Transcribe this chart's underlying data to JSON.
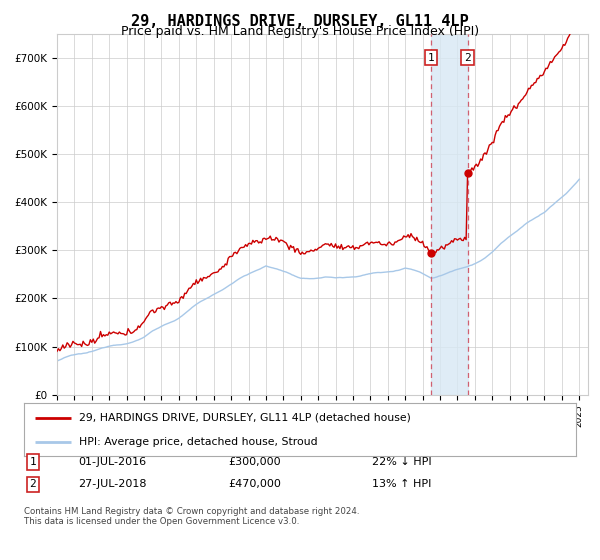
{
  "title": "29, HARDINGS DRIVE, DURSLEY, GL11 4LP",
  "subtitle": "Price paid vs. HM Land Registry's House Price Index (HPI)",
  "legend_line1": "29, HARDINGS DRIVE, DURSLEY, GL11 4LP (detached house)",
  "legend_line2": "HPI: Average price, detached house, Stroud",
  "transaction1_date": "01-JUL-2016",
  "transaction1_price": "£300,000",
  "transaction1_hpi": "22% ↓ HPI",
  "transaction2_date": "27-JUL-2018",
  "transaction2_price": "£470,000",
  "transaction2_hpi": "13% ↑ HPI",
  "footer": "Contains HM Land Registry data © Crown copyright and database right 2024.\nThis data is licensed under the Open Government Licence v3.0.",
  "ylim": [
    0,
    750000
  ],
  "xlim_start": 1995.0,
  "xlim_end": 2025.5,
  "transaction1_x": 2016.5,
  "transaction2_x": 2018.58,
  "hpi_line_color": "#a8c8e8",
  "price_line_color": "#cc0000",
  "vline_color": "#d06070",
  "shade_color": "#d8e8f4",
  "grid_color": "#cccccc",
  "background_color": "#ffffff",
  "title_fontsize": 11,
  "subtitle_fontsize": 9
}
